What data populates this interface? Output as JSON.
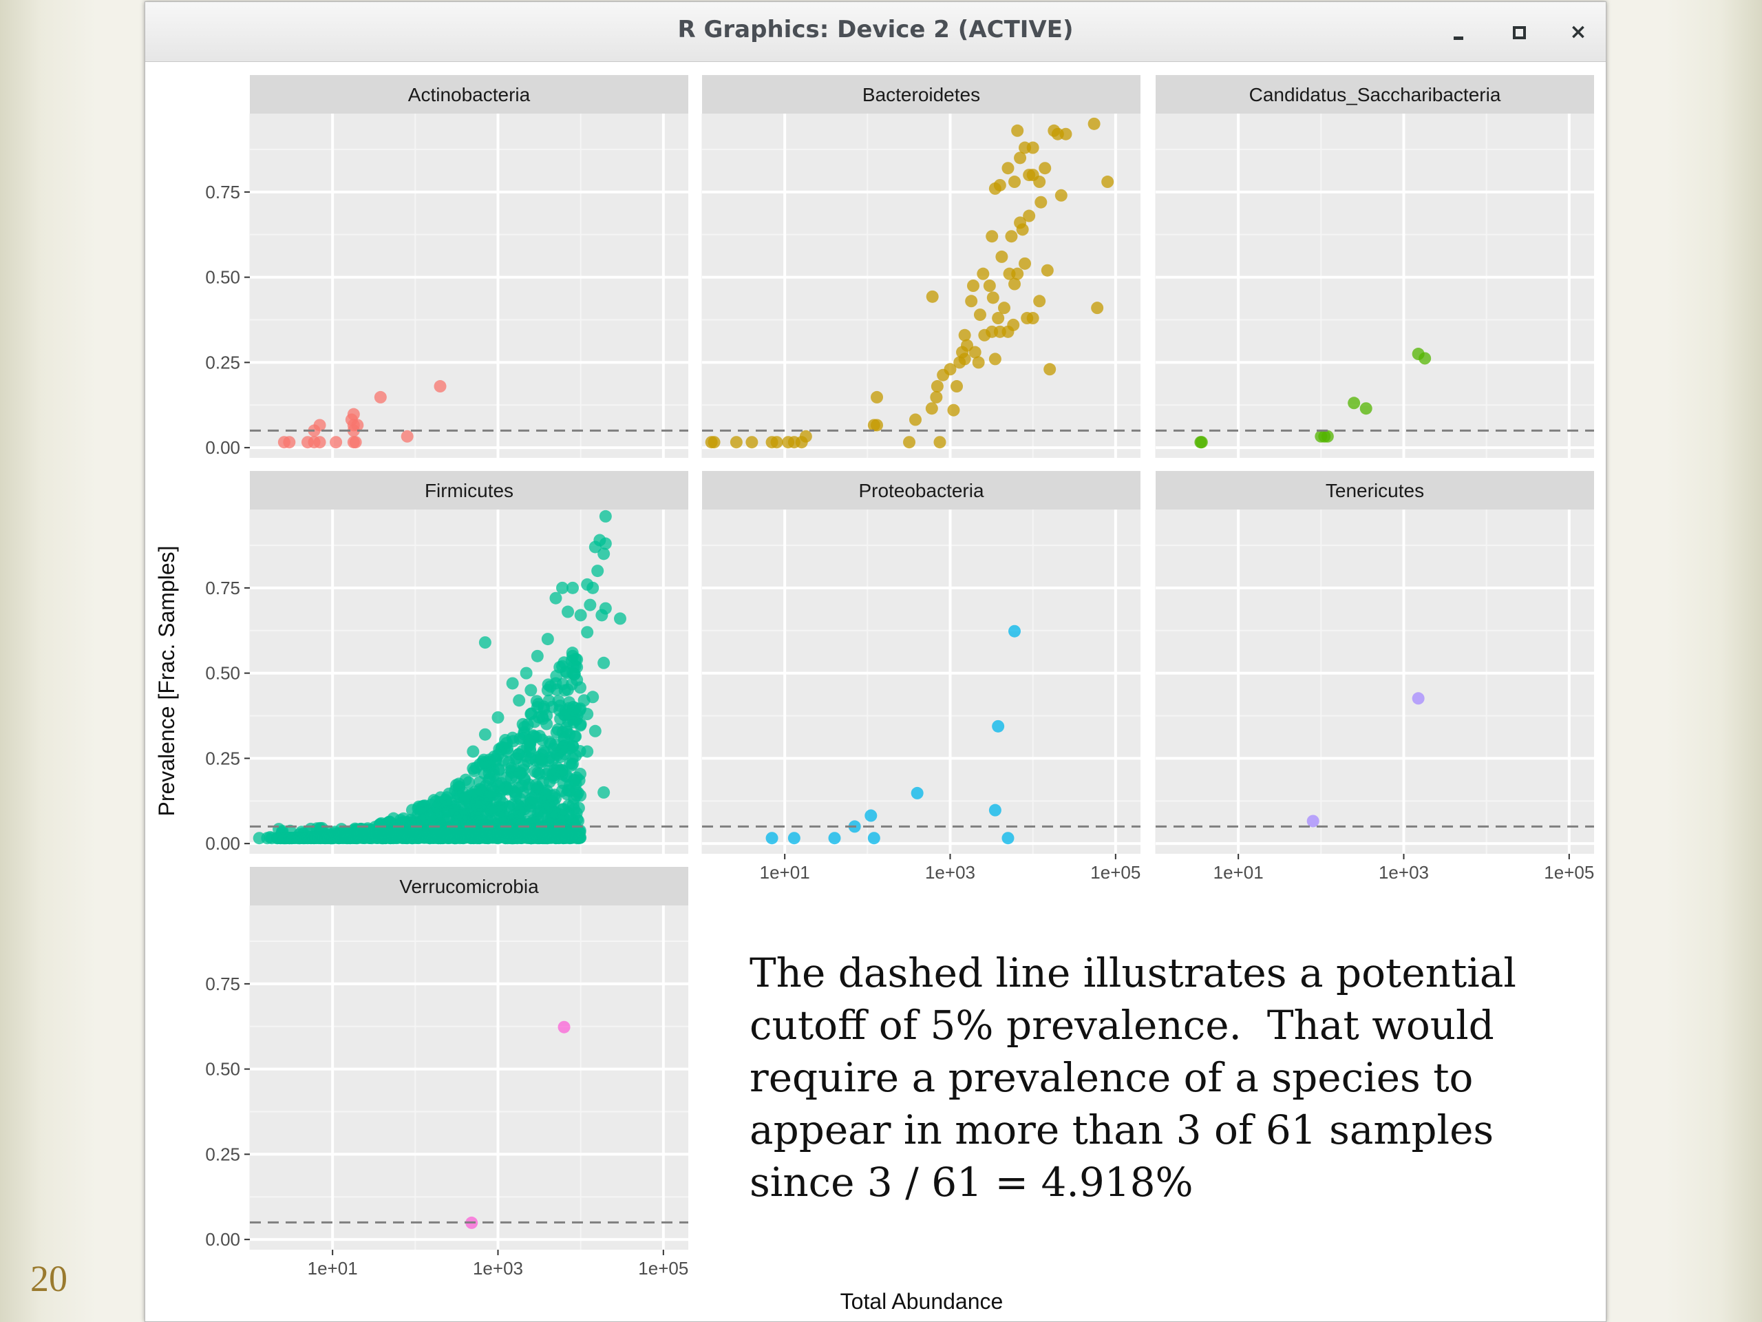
{
  "slide": {
    "number": "20"
  },
  "window": {
    "title": "R Graphics: Device 2 (ACTIVE)",
    "controls": [
      "minimize",
      "maximize",
      "close"
    ],
    "close_glyph": "×"
  },
  "caption": "The dashed line illustrates a potential\ncutoff of 5% prevalence.  That would\nrequire a prevalence of a species to\nappear in more than 3 of 61 samples\nsince 3 / 61 = 4.918%",
  "chart_data": {
    "type": "scatter",
    "facet_layout": "wrap, 3 columns",
    "xlabel": "Total Abundance",
    "ylabel": "Prevalence [Frac. Samples]",
    "x_scale": "log10",
    "xlim": [
      1,
      200000
    ],
    "ylim": [
      -0.03,
      0.98
    ],
    "x_ticks": [
      10,
      1000,
      100000
    ],
    "x_tick_labels": [
      "1e+01",
      "1e+03",
      "1e+05"
    ],
    "y_ticks": [
      0,
      0.25,
      0.5,
      0.75
    ],
    "y_tick_labels": [
      "0.00",
      "0.25",
      "0.50",
      "0.75"
    ],
    "cutoff": 0.05,
    "cutoff_style": "dashed",
    "grid": true,
    "panels": [
      {
        "name": "Actinobacteria",
        "color": "#f8766d",
        "points": [
          [
            2.6,
            0.016
          ],
          [
            3.0,
            0.016
          ],
          [
            5,
            0.016
          ],
          [
            6,
            0.016
          ],
          [
            7,
            0.016
          ],
          [
            11,
            0.016
          ],
          [
            18,
            0.016
          ],
          [
            19,
            0.016
          ],
          [
            6,
            0.05
          ],
          [
            7,
            0.066
          ],
          [
            18,
            0.05
          ],
          [
            18,
            0.066
          ],
          [
            17,
            0.082
          ],
          [
            20,
            0.066
          ],
          [
            18,
            0.098
          ],
          [
            38,
            0.148
          ],
          [
            80,
            0.033
          ],
          [
            200,
            0.18
          ]
        ]
      },
      {
        "name": "Bacteroidetes",
        "color": "#c49a00",
        "points": [
          [
            1.3,
            0.016
          ],
          [
            1.4,
            0.016
          ],
          [
            2.6,
            0.016
          ],
          [
            4,
            0.016
          ],
          [
            7,
            0.016
          ],
          [
            8,
            0.016
          ],
          [
            11,
            0.016
          ],
          [
            13,
            0.016
          ],
          [
            16,
            0.016
          ],
          [
            18,
            0.033
          ],
          [
            120,
            0.066
          ],
          [
            130,
            0.066
          ],
          [
            130,
            0.148
          ],
          [
            320,
            0.016
          ],
          [
            380,
            0.082
          ],
          [
            750,
            0.016
          ],
          [
            610,
            0.443
          ],
          [
            600,
            0.115
          ],
          [
            680,
            0.148
          ],
          [
            700,
            0.18
          ],
          [
            820,
            0.213
          ],
          [
            1000,
            0.23
          ],
          [
            1100,
            0.11
          ],
          [
            1200,
            0.18
          ],
          [
            1300,
            0.25
          ],
          [
            1400,
            0.28
          ],
          [
            1500,
            0.33
          ],
          [
            1600,
            0.3
          ],
          [
            1500,
            0.26
          ],
          [
            2000,
            0.28
          ],
          [
            2200,
            0.25
          ],
          [
            1800,
            0.43
          ],
          [
            1900,
            0.475
          ],
          [
            2300,
            0.39
          ],
          [
            2600,
            0.33
          ],
          [
            2500,
            0.51
          ],
          [
            3000,
            0.475
          ],
          [
            3200,
            0.34
          ],
          [
            3300,
            0.44
          ],
          [
            3500,
            0.26
          ],
          [
            3800,
            0.38
          ],
          [
            4000,
            0.34
          ],
          [
            4200,
            0.56
          ],
          [
            4500,
            0.41
          ],
          [
            5000,
            0.34
          ],
          [
            5200,
            0.51
          ],
          [
            5500,
            0.62
          ],
          [
            5800,
            0.36
          ],
          [
            6000,
            0.48
          ],
          [
            6500,
            0.51
          ],
          [
            7000,
            0.66
          ],
          [
            7500,
            0.64
          ],
          [
            8000,
            0.54
          ],
          [
            8500,
            0.38
          ],
          [
            9000,
            0.68
          ],
          [
            3200,
            0.62
          ],
          [
            3500,
            0.76
          ],
          [
            4000,
            0.77
          ],
          [
            5000,
            0.82
          ],
          [
            6000,
            0.78
          ],
          [
            7000,
            0.85
          ],
          [
            8000,
            0.88
          ],
          [
            9000,
            0.8
          ],
          [
            10000,
            0.8
          ],
          [
            12000,
            0.78
          ],
          [
            12500,
            0.72
          ],
          [
            6500,
            0.93
          ],
          [
            10000,
            0.88
          ],
          [
            14000,
            0.82
          ],
          [
            15000,
            0.52
          ],
          [
            16000,
            0.23
          ],
          [
            18000,
            0.93
          ],
          [
            20000,
            0.92
          ],
          [
            22000,
            0.74
          ],
          [
            25000,
            0.92
          ],
          [
            55000,
            0.95
          ],
          [
            60000,
            0.41
          ],
          [
            80000,
            0.78
          ],
          [
            10000,
            0.38
          ],
          [
            12000,
            0.43
          ]
        ]
      },
      {
        "name": "Candidatus_Saccharibacteria",
        "color": "#53b400",
        "points": [
          [
            3.5,
            0.016
          ],
          [
            3.6,
            0.016
          ],
          [
            100,
            0.033
          ],
          [
            110,
            0.033
          ],
          [
            120,
            0.033
          ],
          [
            250,
            0.131
          ],
          [
            350,
            0.115
          ],
          [
            1500,
            0.275
          ],
          [
            1800,
            0.262
          ]
        ]
      },
      {
        "name": "Firmicutes",
        "color": "#00c094",
        "dense_cloud": {
          "x_range": [
            1.5,
            10000
          ],
          "y_range": [
            0.0,
            0.6
          ],
          "approx_points": 1500
        },
        "points": [
          [
            1.3,
            0.016
          ],
          [
            2.6,
            0.016
          ],
          [
            3,
            0.016
          ],
          [
            4,
            0.016
          ],
          [
            5,
            0.016
          ],
          [
            6,
            0.016
          ],
          [
            8,
            0.016
          ],
          [
            10,
            0.016
          ],
          [
            12,
            0.016
          ],
          [
            15,
            0.016
          ],
          [
            20,
            0.016
          ],
          [
            30,
            0.016
          ],
          [
            50,
            0.016
          ],
          [
            80,
            0.016
          ],
          [
            150,
            0.016
          ],
          [
            300,
            0.016
          ],
          [
            600,
            0.016
          ],
          [
            1000,
            0.016
          ],
          [
            1500,
            0.016
          ],
          [
            2500,
            0.016
          ],
          [
            4000,
            0.016
          ],
          [
            5000,
            0.016
          ],
          [
            30000,
            0.66
          ],
          [
            19000,
            0.85
          ],
          [
            18000,
            0.67
          ],
          [
            12000,
            0.76
          ],
          [
            16000,
            0.8
          ],
          [
            14000,
            0.75
          ],
          [
            8000,
            0.75
          ],
          [
            6000,
            0.75
          ],
          [
            5000,
            0.72
          ],
          [
            7000,
            0.68
          ],
          [
            10000,
            0.67
          ],
          [
            13000,
            0.7
          ],
          [
            20000,
            0.69
          ],
          [
            20000,
            0.96
          ],
          [
            20000,
            0.88
          ],
          [
            17000,
            0.89
          ],
          [
            15000,
            0.87
          ],
          [
            12000,
            0.62
          ],
          [
            19000,
            0.53
          ],
          [
            9000,
            0.54
          ],
          [
            8000,
            0.55
          ],
          [
            4000,
            0.6
          ],
          [
            700,
            0.59
          ],
          [
            14000,
            0.43
          ],
          [
            12000,
            0.38
          ],
          [
            15000,
            0.33
          ],
          [
            19000,
            0.15
          ],
          [
            12000,
            0.27
          ],
          [
            10000,
            0.35
          ],
          [
            11000,
            0.42
          ],
          [
            9000,
            0.48
          ],
          [
            8000,
            0.5
          ],
          [
            6000,
            0.52
          ],
          [
            5000,
            0.47
          ],
          [
            4000,
            0.45
          ],
          [
            3000,
            0.4
          ],
          [
            2500,
            0.38
          ],
          [
            2000,
            0.35
          ],
          [
            1500,
            0.31
          ],
          [
            1200,
            0.28
          ],
          [
            1000,
            0.26
          ],
          [
            900,
            0.2
          ],
          [
            800,
            0.24
          ],
          [
            600,
            0.18
          ],
          [
            500,
            0.22
          ],
          [
            400,
            0.13
          ],
          [
            300,
            0.1
          ],
          [
            200,
            0.12
          ],
          [
            150,
            0.08
          ],
          [
            100,
            0.06
          ],
          [
            80,
            0.05
          ],
          [
            60,
            0.04
          ],
          [
            50,
            0.035
          ],
          [
            40,
            0.03
          ],
          [
            3500,
            0.18
          ],
          [
            6000,
            0.28
          ],
          [
            7000,
            0.38
          ],
          [
            2500,
            0.45
          ],
          [
            1800,
            0.42
          ],
          [
            2200,
            0.5
          ],
          [
            3000,
            0.55
          ],
          [
            1500,
            0.47
          ],
          [
            1000,
            0.37
          ],
          [
            700,
            0.32
          ],
          [
            500,
            0.27
          ],
          [
            6000,
            0.1
          ],
          [
            4500,
            0.14
          ],
          [
            3500,
            0.08
          ],
          [
            2500,
            0.12
          ],
          [
            1800,
            0.07
          ],
          [
            1200,
            0.16
          ],
          [
            800,
            0.1
          ],
          [
            600,
            0.12
          ]
        ]
      },
      {
        "name": "Proteobacteria",
        "color": "#00b6eb",
        "points": [
          [
            7,
            0.016
          ],
          [
            13,
            0.016
          ],
          [
            40,
            0.016
          ],
          [
            120,
            0.016
          ],
          [
            5000,
            0.016
          ],
          [
            70,
            0.05
          ],
          [
            110,
            0.082
          ],
          [
            400,
            0.148
          ],
          [
            3500,
            0.098
          ],
          [
            3800,
            0.344
          ],
          [
            6000,
            0.623
          ]
        ]
      },
      {
        "name": "Tenericutes",
        "color": "#a58aff",
        "points": [
          [
            80,
            0.066
          ],
          [
            1500,
            0.426
          ]
        ]
      },
      {
        "name": "Verrucomicrobia",
        "color": "#fb61d7",
        "points": [
          [
            480,
            0.049
          ],
          [
            6300,
            0.623
          ]
        ]
      }
    ]
  }
}
